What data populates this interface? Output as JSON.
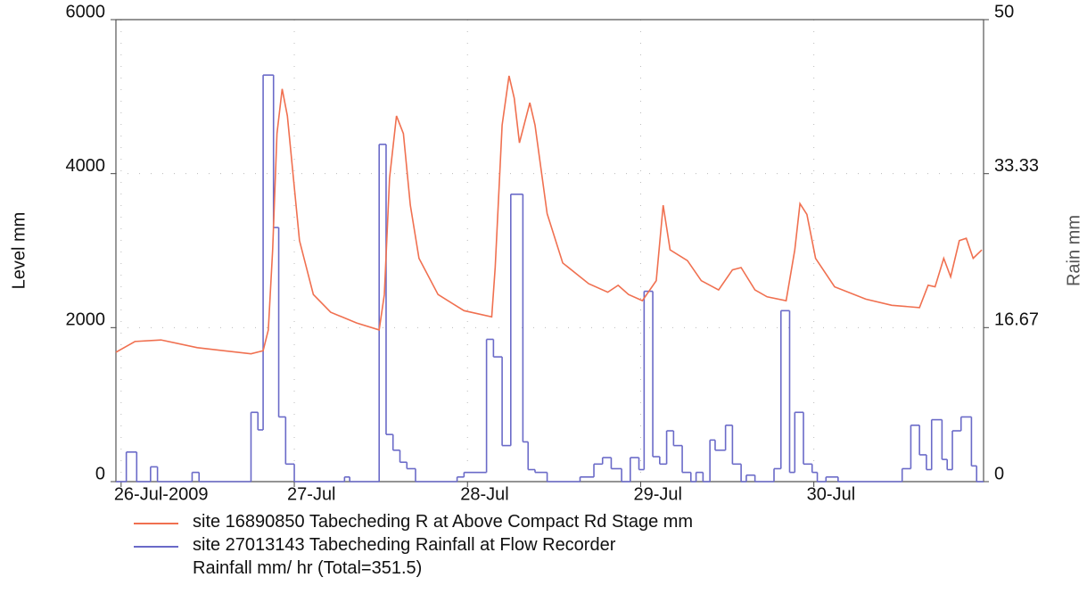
{
  "chart_data": {
    "type": "line",
    "y_label": "Level mm",
    "y2_label": "Rain mm",
    "xlim": [
      -0.03,
      4.98
    ],
    "xticks": [
      {
        "value": 0,
        "label": "26-Jul-2009"
      },
      {
        "value": 1,
        "label": "27-Jul"
      },
      {
        "value": 2,
        "label": "28-Jul"
      },
      {
        "value": 3,
        "label": "29-Jul"
      },
      {
        "value": 4,
        "label": "30-Jul"
      }
    ],
    "ylim": [
      0,
      6000
    ],
    "yticks": [
      0,
      2000,
      4000,
      6000
    ],
    "y2lim": [
      0,
      50
    ],
    "y2ticks": [
      0,
      16.67,
      33.33,
      50
    ],
    "grid": true,
    "series": [
      {
        "name": "site 16890850 Tabecheding R at Above Compact Rd   Stage mm",
        "color": "#f07050",
        "style": "line",
        "x": [
          -0.03,
          0.08,
          0.23,
          0.44,
          0.75,
          0.82,
          0.85,
          0.875,
          0.9,
          0.93,
          0.96,
          1.03,
          1.11,
          1.21,
          1.36,
          1.49,
          1.52,
          1.55,
          1.59,
          1.63,
          1.67,
          1.72,
          1.83,
          1.98,
          2.14,
          2.16,
          2.2,
          2.24,
          2.27,
          2.3,
          2.36,
          2.39,
          2.46,
          2.55,
          2.7,
          2.81,
          2.87,
          2.93,
          3.01,
          3.09,
          3.13,
          3.17,
          3.27,
          3.35,
          3.45,
          3.53,
          3.58,
          3.66,
          3.73,
          3.84,
          3.89,
          3.92,
          3.96,
          4.01,
          4.12,
          4.3,
          4.45,
          4.61,
          4.66,
          4.7,
          4.75,
          4.79,
          4.84,
          4.88,
          4.92,
          4.97
        ],
        "values": [
          1680,
          1820,
          1840,
          1740,
          1660,
          1700,
          1970,
          3010,
          4520,
          5100,
          4750,
          3130,
          2430,
          2200,
          2060,
          1970,
          2430,
          3940,
          4750,
          4520,
          3590,
          2900,
          2430,
          2220,
          2140,
          2780,
          4630,
          5270,
          4980,
          4400,
          4920,
          4630,
          3480,
          2840,
          2570,
          2460,
          2550,
          2430,
          2350,
          2610,
          3590,
          3010,
          2870,
          2610,
          2490,
          2750,
          2780,
          2490,
          2400,
          2350,
          3010,
          3610,
          3470,
          2900,
          2530,
          2370,
          2290,
          2260,
          2550,
          2530,
          2900,
          2660,
          3130,
          3160,
          2900,
          3010
        ]
      },
      {
        "name": "site 27013143 Tabecheding Rainfall at Flow Recorder\nRainfall mm/ hr (Total=351.5)",
        "color": "#6a6ac8",
        "style": "step",
        "axis": "y2",
        "x": [
          -0.03,
          0.03,
          0.09,
          0.17,
          0.21,
          0.41,
          0.45,
          0.75,
          0.79,
          0.82,
          0.88,
          0.91,
          0.95,
          1.0,
          1.29,
          1.32,
          1.49,
          1.53,
          1.57,
          1.61,
          1.65,
          1.7,
          1.94,
          1.98,
          2.11,
          2.15,
          2.2,
          2.25,
          2.32,
          2.35,
          2.39,
          2.46,
          2.65,
          2.73,
          2.78,
          2.83,
          2.89,
          2.94,
          2.99,
          3.02,
          3.07,
          3.11,
          3.15,
          3.19,
          3.24,
          3.29,
          3.32,
          3.36,
          3.4,
          3.43,
          3.49,
          3.53,
          3.58,
          3.61,
          3.66,
          3.77,
          3.81,
          3.86,
          3.89,
          3.94,
          3.99,
          4.02,
          4.07,
          4.14,
          4.51,
          4.56,
          4.61,
          4.65,
          4.68,
          4.74,
          4.77,
          4.8,
          4.85,
          4.91,
          4.94
        ],
        "values": [
          0,
          3.2,
          0,
          1.6,
          0,
          1.0,
          0,
          7.5,
          5.6,
          44,
          27.5,
          7,
          1.9,
          0,
          0.5,
          0,
          36.5,
          5.1,
          3.4,
          2.1,
          1.4,
          0,
          0.5,
          1.0,
          15.4,
          13.5,
          3.9,
          31.1,
          4.3,
          1.3,
          1.0,
          0,
          0.5,
          1.9,
          2.6,
          1.4,
          0,
          2.6,
          1.3,
          20.6,
          2.7,
          1.9,
          5.5,
          3.9,
          1.0,
          0,
          1.0,
          0,
          4.5,
          3.4,
          6.1,
          1.9,
          0,
          0.7,
          0,
          1.4,
          18.5,
          1.0,
          7.5,
          1.9,
          1.0,
          0,
          0.5,
          0,
          1.4,
          6.1,
          2.9,
          1.3,
          6.7,
          2.4,
          1.3,
          5.5,
          7.0,
          1.7,
          0
        ]
      }
    ]
  }
}
